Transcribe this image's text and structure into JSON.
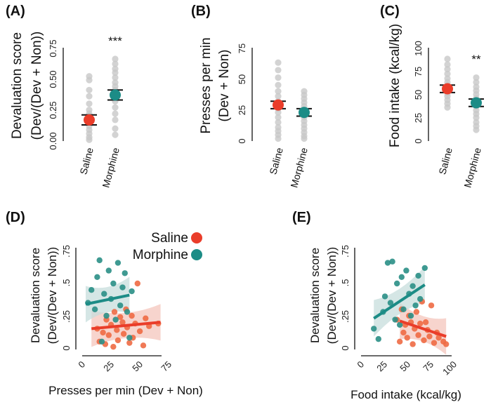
{
  "colors": {
    "saline": "#ea3d2a",
    "morphine": "#1c8c86",
    "individual": "#c8c8c8",
    "saline_scatter": "#ee6a44",
    "morphine_scatter": "#2a8f86",
    "saline_band": "#f4c5bc",
    "morphine_band": "#c7dedc"
  },
  "legend": {
    "saline": "Saline",
    "morphine": "Morphine"
  },
  "chart_data": [
    {
      "id": "A",
      "panel_label": "(A)",
      "type": "scatter",
      "ylabel_line1": "Devaluation score",
      "ylabel_line2": "(Dev/(Dev + Non))",
      "ylim": [
        0,
        0.75
      ],
      "yticks": [
        "0.00",
        "0.25",
        "0.50",
        "0.75"
      ],
      "categories": [
        "Saline",
        "Morphine"
      ],
      "significance": "***",
      "groups": [
        {
          "name": "Saline",
          "mean": 0.17,
          "sem_low": 0.13,
          "sem_high": 0.21,
          "points": [
            0.52,
            0.49,
            0.41,
            0.36,
            0.3,
            0.25,
            0.22,
            0.2,
            0.18,
            0.15,
            0.12,
            0.09,
            0.06,
            0.03,
            0.01
          ]
        },
        {
          "name": "Morphine",
          "mean": 0.37,
          "sem_low": 0.33,
          "sem_high": 0.41,
          "points": [
            0.66,
            0.62,
            0.58,
            0.55,
            0.51,
            0.47,
            0.44,
            0.41,
            0.38,
            0.35,
            0.32,
            0.27,
            0.22,
            0.17,
            0.1,
            0.05
          ]
        }
      ]
    },
    {
      "id": "B",
      "panel_label": "(B)",
      "type": "scatter",
      "ylabel_line1": "Presses per min",
      "ylabel_line2": "(Dev + Non)",
      "ylim": [
        0,
        75
      ],
      "yticks": [
        "0",
        "25",
        "50",
        "75"
      ],
      "categories": [
        "Saline",
        "Morphine"
      ],
      "significance": "",
      "groups": [
        {
          "name": "Saline",
          "mean": 29,
          "sem_low": 26,
          "sem_high": 32,
          "points": [
            63,
            57,
            51,
            45,
            40,
            36,
            32,
            29,
            26,
            23,
            19,
            15,
            11,
            8,
            5,
            2
          ]
        },
        {
          "name": "Morphine",
          "mean": 23,
          "sem_low": 20,
          "sem_high": 26,
          "points": [
            40,
            37,
            34,
            31,
            28,
            25,
            22,
            19,
            16,
            13,
            10,
            7,
            4,
            2
          ]
        }
      ]
    },
    {
      "id": "C",
      "panel_label": "(C)",
      "type": "scatter",
      "ylabel_line1": "Food intake (kcal/kg)",
      "ylabel_line2": "",
      "ylim": [
        0,
        100
      ],
      "yticks": [
        "0",
        "25",
        "50",
        "75",
        "100"
      ],
      "categories": [
        "Saline",
        "Morphine"
      ],
      "significance": "**",
      "groups": [
        {
          "name": "Saline",
          "mean": 56,
          "sem_low": 52,
          "sem_high": 60,
          "points": [
            88,
            82,
            77,
            72,
            67,
            63,
            60,
            57,
            54,
            51,
            48,
            44,
            40,
            36
          ]
        },
        {
          "name": "Morphine",
          "mean": 41,
          "sem_low": 37,
          "sem_high": 45,
          "points": [
            68,
            63,
            58,
            54,
            50,
            46,
            43,
            40,
            37,
            33,
            29,
            25,
            20,
            16,
            12
          ]
        }
      ]
    },
    {
      "id": "D",
      "panel_label": "(D)",
      "type": "scatter",
      "ylabel_line1": "Devaluation score",
      "ylabel_line2": "(Dev/(Dev + Non))",
      "xlabel": "Presses per min (Dev + Non)",
      "xlim": [
        0,
        75
      ],
      "xticks": [
        "0",
        "25",
        "50",
        "75"
      ],
      "ylim": [
        0,
        0.75
      ],
      "yticks": [
        "0",
        ".25",
        ".5",
        ".75"
      ],
      "series": [
        {
          "name": "Saline",
          "x": [
            10,
            12,
            15,
            17,
            18,
            20,
            22,
            24,
            25,
            27,
            28,
            30,
            32,
            33,
            35,
            36,
            38,
            40,
            41,
            43,
            45,
            47,
            50,
            52,
            55,
            63
          ],
          "y": [
            0.15,
            0.05,
            0.12,
            0.03,
            0.22,
            0.1,
            0.18,
            0.01,
            0.28,
            0.14,
            0.06,
            0.24,
            0.2,
            0.11,
            0.3,
            0.16,
            0.04,
            0.25,
            0.08,
            0.19,
            0.5,
            0.13,
            0.02,
            0.23,
            0.17,
            0.19
          ],
          "fit": {
            "x1": 5,
            "y1": 0.15,
            "x2": 65,
            "y2": 0.2
          }
        },
        {
          "name": "Morphine",
          "x": [
            2,
            5,
            8,
            10,
            12,
            14,
            16,
            18,
            20,
            22,
            24,
            26,
            28,
            30,
            32,
            34,
            36,
            38,
            40
          ],
          "y": [
            0.35,
            0.45,
            0.3,
            0.55,
            0.68,
            0.05,
            0.42,
            0.25,
            0.6,
            0.38,
            0.5,
            0.22,
            0.66,
            0.33,
            0.47,
            0.58,
            0.28,
            0.08,
            0.44
          ],
          "fit": {
            "x1": 0,
            "y1": 0.34,
            "x2": 38,
            "y2": 0.41
          }
        }
      ]
    },
    {
      "id": "E",
      "panel_label": "(E)",
      "type": "scatter",
      "ylabel_line1": "Devaluation score",
      "ylabel_line2": "(Dev/(Dev + Non))",
      "xlabel": "Food intake (kcal/kg)",
      "xlim": [
        0,
        100
      ],
      "xticks": [
        "0",
        "25",
        "50",
        "75",
        "100"
      ],
      "ylim": [
        0,
        0.75
      ],
      "yticks": [
        "0",
        ".25",
        ".5",
        ".75"
      ],
      "series": [
        {
          "name": "Saline",
          "x": [
            35,
            38,
            40,
            42,
            44,
            46,
            48,
            50,
            52,
            54,
            56,
            58,
            60,
            62,
            64,
            66,
            68,
            70,
            72,
            75,
            78,
            80,
            85,
            88
          ],
          "y": [
            0.22,
            0.05,
            0.3,
            0.12,
            0.18,
            0.08,
            0.25,
            0.2,
            0.03,
            0.15,
            0.28,
            0.1,
            0.19,
            0.36,
            0.06,
            0.2,
            0.14,
            0.09,
            0.33,
            0.04,
            0.12,
            0.08,
            0.05,
            0.03
          ],
          "fit": {
            "x1": 38,
            "y1": 0.21,
            "x2": 88,
            "y2": 0.09
          }
        },
        {
          "name": "Morphine",
          "x": [
            10,
            15,
            20,
            22,
            25,
            28,
            30,
            33,
            35,
            38,
            40,
            42,
            45,
            48,
            50,
            52,
            55,
            58,
            60,
            65
          ],
          "y": [
            0.15,
            0.07,
            0.28,
            0.4,
            0.66,
            0.35,
            0.67,
            0.22,
            0.5,
            0.18,
            0.55,
            0.3,
            0.6,
            0.42,
            0.25,
            0.48,
            0.33,
            0.56,
            0.38,
            0.62
          ],
          "fit": {
            "x1": 10,
            "y1": 0.23,
            "x2": 65,
            "y2": 0.49
          }
        }
      ]
    }
  ]
}
